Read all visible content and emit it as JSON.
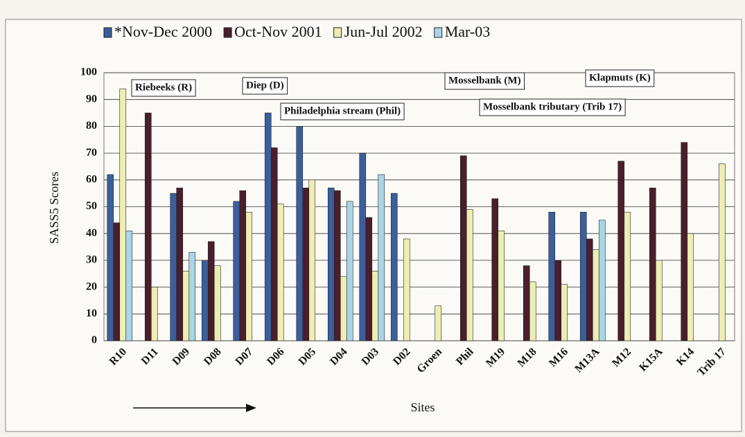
{
  "chart_data": {
    "type": "bar",
    "y_label": "SASS5 Scores",
    "x_label": "Sites",
    "categories": [
      "R10",
      "D11",
      "D09",
      "D08",
      "D07",
      "D06",
      "D05",
      "D04",
      "D03",
      "D02",
      "Groen",
      "Phil",
      "M19",
      "M18",
      "M16",
      "M13A",
      "M12",
      "K15A",
      "K14",
      "Trib 17"
    ],
    "series": [
      {
        "name": "*Nov-Dec 2000",
        "color": "#3b5f9c",
        "values": [
          62,
          null,
          55,
          30,
          52,
          85,
          80,
          57,
          70,
          55,
          null,
          null,
          null,
          null,
          48,
          48,
          null,
          null,
          null,
          null
        ]
      },
      {
        "name": "Oct-Nov 2001",
        "color": "#4a1e2c",
        "values": [
          44,
          85,
          57,
          37,
          56,
          72,
          57,
          56,
          46,
          null,
          null,
          69,
          53,
          28,
          30,
          38,
          67,
          57,
          74,
          null
        ]
      },
      {
        "name": "Jun-Jul 2002",
        "color": "#eeeeb4",
        "values": [
          94,
          20,
          26,
          28,
          48,
          51,
          60,
          24,
          26,
          38,
          13,
          49,
          41,
          22,
          21,
          34,
          48,
          30,
          40,
          66
        ]
      },
      {
        "name": "Mar-03",
        "color": "#a9d6e6",
        "values": [
          41,
          null,
          33,
          null,
          null,
          null,
          null,
          52,
          62,
          null,
          null,
          null,
          null,
          null,
          null,
          45,
          null,
          null,
          null,
          null
        ]
      }
    ],
    "annotations": [
      "Riebeeks (R)",
      "Diep (D)",
      "Philadelphia stream (Phil)",
      "Mosselbank (M)",
      "Klapmuts (K)",
      "Mosselbank tributary (Trib 17)"
    ],
    "ylim": [
      0,
      100
    ],
    "yticks": [
      0,
      10,
      20,
      30,
      40,
      50,
      60,
      70,
      80,
      90,
      100
    ],
    "grid": true
  }
}
